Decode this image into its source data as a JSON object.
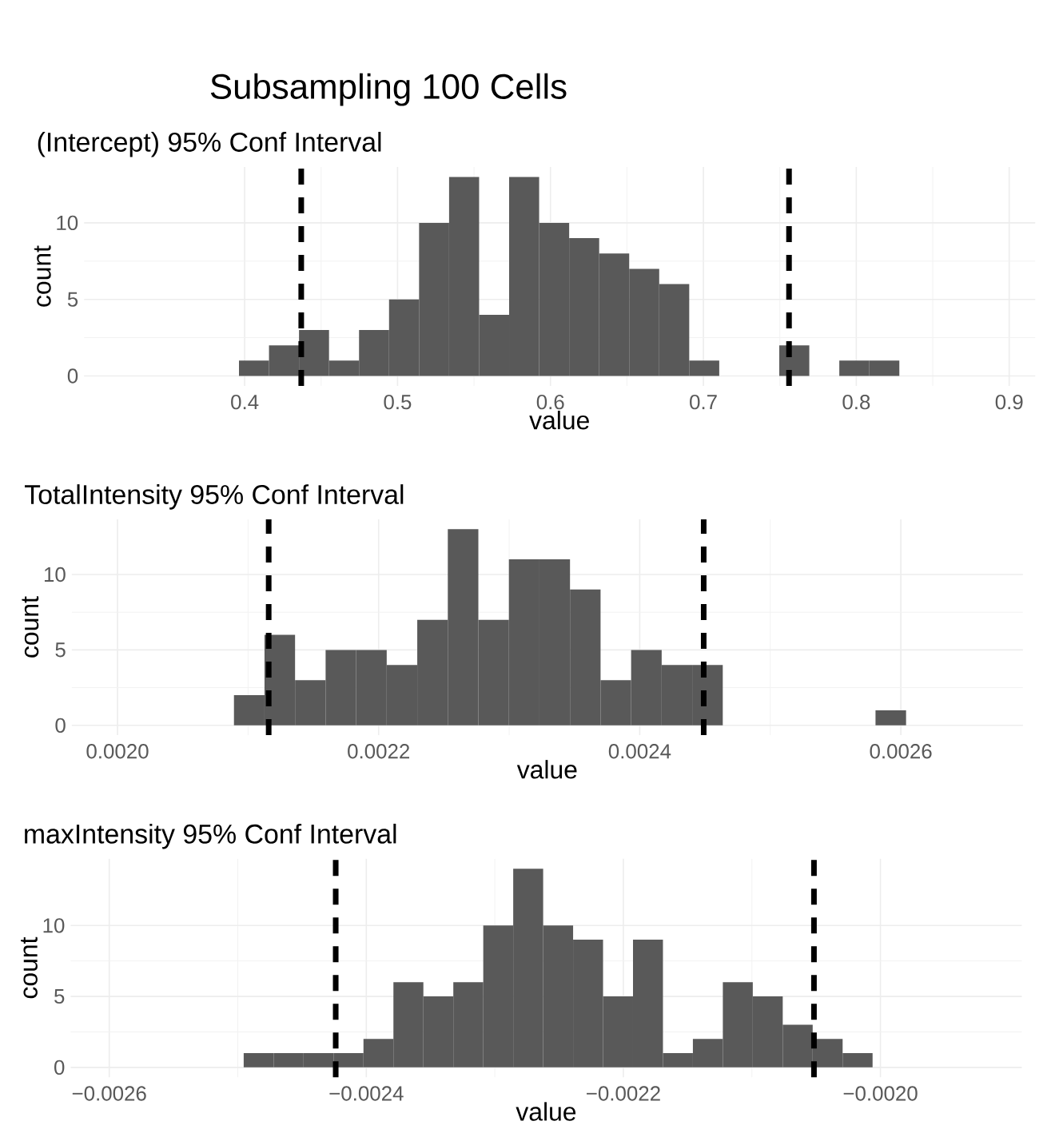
{
  "chart_data": [
    {
      "type": "histogram",
      "title": "Subsampling 100 Cells",
      "subtitle": "(Intercept) 95% Conf Interval",
      "xlabel": "value",
      "ylabel": "count",
      "color": "#595959",
      "bins": [
        0.3374,
        0.35703,
        0.37666,
        0.39629,
        0.41592,
        0.43555,
        0.45518,
        0.47481,
        0.49444,
        0.51407,
        0.5337,
        0.55333,
        0.57296,
        0.59259,
        0.61222,
        0.63185,
        0.65148,
        0.67111,
        0.69074,
        0.71037,
        0.73,
        0.74963,
        0.76926,
        0.78889,
        0.80852,
        0.82815,
        0.84778,
        0.86741,
        0.88704
      ],
      "values": [
        0,
        0,
        0,
        1,
        2,
        3,
        1,
        3,
        5,
        10,
        13,
        4,
        13,
        10,
        9,
        8,
        7,
        6,
        1,
        0,
        0,
        2,
        0,
        1,
        1,
        0,
        0,
        0
      ],
      "xlim": [
        0.295,
        0.917
      ],
      "ylim": [
        -0.65,
        13.65
      ],
      "xticks": [
        0.4,
        0.5,
        0.6,
        0.7,
        0.8,
        0.9
      ],
      "yticks": [
        0,
        5,
        10
      ],
      "grid": true,
      "ref_lines": [
        {
          "axis": "x",
          "value": 0.437,
          "color": "#000000",
          "line_style": "dashed"
        },
        {
          "axis": "x",
          "value": 0.756,
          "color": "#000000",
          "line_style": "dashed"
        }
      ]
    },
    {
      "type": "histogram",
      "title": "TotalIntensity 95% Conf Interval",
      "xlabel": "value",
      "ylabel": "count",
      "color": "#595959",
      "bins": [
        0.002019,
        0.0020424,
        0.0020658,
        0.0020892,
        0.0021126,
        0.002136,
        0.0021594,
        0.0021828,
        0.0022062,
        0.0022296,
        0.002253,
        0.0022764,
        0.0022998,
        0.0023232,
        0.0023466,
        0.00237,
        0.0023934,
        0.0024168,
        0.0024402,
        0.0024636,
        0.002487,
        0.0025104,
        0.0025338,
        0.0025572,
        0.0025806,
        0.002604,
        0.0026274,
        0.0026508,
        0.0026742
      ],
      "values": [
        0,
        0,
        0,
        2,
        6,
        3,
        5,
        5,
        4,
        7,
        13,
        7,
        11,
        11,
        9,
        3,
        5,
        4,
        4,
        0,
        0,
        0,
        0,
        0,
        1,
        0,
        0,
        0
      ],
      "xlim": [
        0.001965,
        0.0026935
      ],
      "ylim": [
        -0.65,
        13.65
      ],
      "xticks": [
        {
          "value": 0.002,
          "label": "0.0020"
        },
        {
          "value": 0.0022,
          "label": "0.0022"
        },
        {
          "value": 0.0024,
          "label": "0.0024"
        },
        {
          "value": 0.0026,
          "label": "0.0026"
        }
      ],
      "yticks": [
        0,
        5,
        10
      ],
      "grid": true,
      "ref_lines": [
        {
          "axis": "x",
          "value": 0.0021158,
          "color": "#000000",
          "line_style": "dashed"
        },
        {
          "axis": "x",
          "value": 0.002449,
          "color": "#000000",
          "line_style": "dashed"
        }
      ]
    },
    {
      "type": "histogram",
      "title": "maxIntensity 95% Conf Interval",
      "xlabel": "value",
      "ylabel": "count",
      "color": "#595959",
      "bins": [
        -0.0025886,
        -0.0025653,
        -0.002542,
        -0.0025187,
        -0.0024954,
        -0.0024721,
        -0.0024488,
        -0.0024255,
        -0.0024022,
        -0.0023789,
        -0.0023556,
        -0.0023323,
        -0.002309,
        -0.0022857,
        -0.0022624,
        -0.0022391,
        -0.0022158,
        -0.0021925,
        -0.0021692,
        -0.0021459,
        -0.0021226,
        -0.0020993,
        -0.002076,
        -0.0020527,
        -0.0020294,
        -0.0020061,
        -0.0019828,
        -0.0019595,
        -0.0019362
      ],
      "values": [
        0,
        0,
        0,
        0,
        1,
        1,
        1,
        1,
        2,
        6,
        5,
        6,
        10,
        14,
        10,
        9,
        5,
        9,
        1,
        2,
        6,
        5,
        3,
        2,
        1,
        0,
        0,
        0
      ],
      "xlim": [
        -0.00263,
        -0.00189
      ],
      "ylim": [
        -0.7,
        14.7
      ],
      "xticks": [
        {
          "value": -0.0026,
          "label": "−0.0026"
        },
        {
          "value": -0.0024,
          "label": "−0.0024"
        },
        {
          "value": -0.0022,
          "label": "−0.0022"
        },
        {
          "value": -0.002,
          "label": "−0.0020"
        }
      ],
      "yticks": [
        0,
        5,
        10
      ],
      "grid": true,
      "ref_lines": [
        {
          "axis": "x",
          "value": -0.0024238,
          "color": "#000000",
          "line_style": "dashed"
        },
        {
          "axis": "x",
          "value": -0.0020517,
          "color": "#000000",
          "line_style": "dashed"
        }
      ]
    }
  ]
}
